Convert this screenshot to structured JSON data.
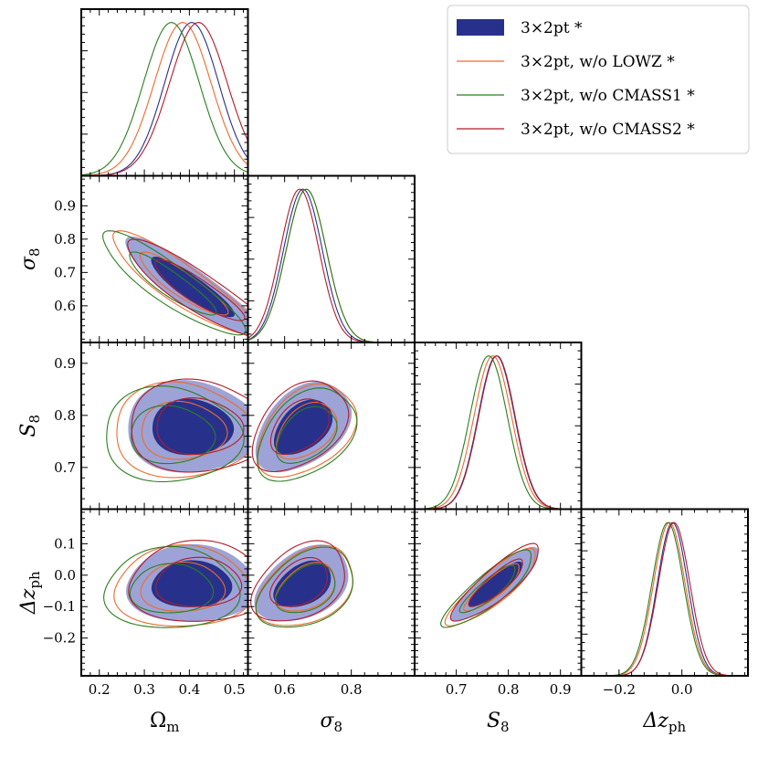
{
  "chart_data": {
    "type": "corner",
    "params": [
      {
        "key": "om",
        "label": "Ωm",
        "sym": "Ω",
        "sub": "m",
        "italic": false,
        "range": [
          0.16,
          0.53
        ],
        "ticks": [
          "0.2",
          "0.3",
          "0.4",
          "0.5"
        ],
        "tickvals": [
          0.2,
          0.3,
          0.4,
          0.5
        ]
      },
      {
        "key": "s8",
        "label": "σ8",
        "sym": "σ",
        "sub": "8",
        "italic": true,
        "range": [
          0.49,
          0.99
        ],
        "ticks": [
          "0.6",
          "0.8"
        ],
        "tickvals": [
          0.6,
          0.8
        ],
        "yticks": [
          "0.6",
          "0.7",
          "0.8",
          "0.9"
        ],
        "ytickvals": [
          0.6,
          0.7,
          0.8,
          0.9
        ]
      },
      {
        "key": "S8",
        "label": "S8",
        "sym": "S",
        "sub": "8",
        "italic": true,
        "range": [
          0.62,
          0.94
        ],
        "ticks": [
          "0.7",
          "0.8",
          "0.9"
        ],
        "tickvals": [
          0.7,
          0.8,
          0.9
        ]
      },
      {
        "key": "dz",
        "label": "Δzph",
        "sym": "Δz",
        "sub": "ph",
        "italic": true,
        "range": [
          -0.32,
          0.21
        ],
        "ticks": [
          "−0.2",
          "0.0"
        ],
        "tickvals": [
          -0.2,
          0.0
        ],
        "yticks": [
          "−0.2",
          "−0.1",
          "0.0",
          "0.1"
        ],
        "ytickvals": [
          -0.2,
          -0.1,
          0.0,
          0.1
        ]
      }
    ],
    "series": [
      {
        "name": "3×2pt *",
        "color": "#27318c",
        "fill": true,
        "means": [
          0.405,
          0.655,
          0.777,
          -0.03
        ],
        "sigmas": [
          0.06,
          0.058,
          0.035,
          0.048
        ]
      },
      {
        "name": "3×2pt, w/o LOWZ *",
        "color": "#ee6a2c",
        "fill": false,
        "means": [
          0.385,
          0.665,
          0.77,
          -0.04
        ],
        "sigmas": [
          0.063,
          0.06,
          0.036,
          0.05
        ]
      },
      {
        "name": "3×2pt, w/o CMASS1 *",
        "color": "#2a7f1e",
        "fill": false,
        "means": [
          0.36,
          0.665,
          0.762,
          -0.045
        ],
        "sigmas": [
          0.062,
          0.06,
          0.036,
          0.05
        ]
      },
      {
        "name": "3×2pt, w/o CMASS2 *",
        "color": "#b31b2a",
        "fill": false,
        "means": [
          0.42,
          0.645,
          0.778,
          -0.025
        ],
        "sigmas": [
          0.064,
          0.058,
          0.035,
          0.05
        ]
      }
    ],
    "correlations": {
      "om-s8": -0.88,
      "om-S8": 0.02,
      "om-dz": 0.03,
      "s8-S8": 0.45,
      "s8-dz": 0.4,
      "S8-dz": 0.88
    },
    "legend": "top-right",
    "grid": false
  },
  "colors": {
    "fill_68": "#27318c",
    "fill_95": "#9da3d6"
  }
}
